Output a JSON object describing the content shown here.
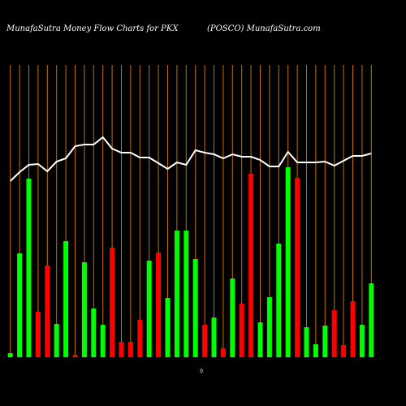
{
  "chart_data": {
    "type": "bar",
    "title": "MunafaSutra  Money Flow  Charts for PKX",
    "subtitle": "(POSCO) MunafaSutra.com",
    "annotation": "0",
    "categories": [
      null,
      null,
      null,
      null,
      null,
      null,
      null,
      null,
      null,
      null,
      null,
      null,
      null,
      null,
      null,
      null,
      null,
      null,
      null,
      null,
      null,
      null,
      null,
      null,
      null,
      null,
      null,
      null,
      null,
      null,
      null,
      null,
      null,
      null,
      null,
      null,
      null,
      null,
      null,
      null
    ],
    "values": [
      5,
      128,
      220,
      56,
      113,
      41,
      143,
      3,
      117,
      60,
      40,
      135,
      19,
      19,
      46,
      119,
      129,
      73,
      156,
      156,
      121,
      40,
      49,
      11,
      97,
      66,
      226,
      43,
      74,
      140,
      234,
      221,
      37,
      16,
      39,
      58,
      15,
      69,
      40,
      91
    ],
    "colors": [
      "#00ff00",
      "#00ff00",
      "#00ff00",
      "#ff0000",
      "#ff0000",
      "#00ff00",
      "#00ff00",
      "#ff0000",
      "#00ff00",
      "#00ff00",
      "#00ff00",
      "#ff0000",
      "#ff0000",
      "#ff0000",
      "#ff0000",
      "#00ff00",
      "#ff0000",
      "#00ff00",
      "#00ff00",
      "#00ff00",
      "#00ff00",
      "#ff0000",
      "#00ff00",
      "#ff0000",
      "#00ff00",
      "#ff0000",
      "#ff0000",
      "#00ff00",
      "#00ff00",
      "#00ff00",
      "#00ff00",
      "#ff0000",
      "#00ff00",
      "#00ff00",
      "#00ff00",
      "#ff0000",
      "#ff0000",
      "#ff0000",
      "#00ff00",
      "#00ff00"
    ],
    "line": {
      "color": "#ffffff",
      "values": [
        217,
        228,
        237,
        238,
        229,
        241,
        245,
        260,
        262,
        262,
        271,
        257,
        252,
        252,
        246,
        246,
        239,
        232,
        240,
        237,
        255,
        252,
        250,
        245,
        250,
        247,
        247,
        243,
        235,
        235,
        253,
        240,
        240,
        240,
        241,
        236,
        242,
        248,
        248,
        251
      ]
    },
    "grid_color": "#c87000",
    "ylim": [
      0,
      360
    ]
  }
}
